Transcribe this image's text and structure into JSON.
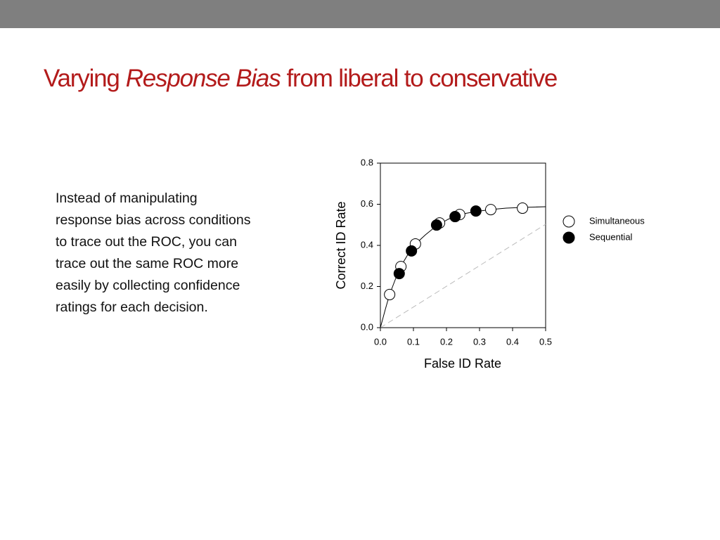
{
  "header": {
    "title_parts": [
      "Varying",
      "Response Bias",
      "from liberal to conservative"
    ]
  },
  "body": {
    "lines": [
      "Instead of manipulating",
      "response bias across conditions",
      "to trace out the ROC, you can",
      "trace out the same ROC more",
      "easily by collecting confidence",
      "ratings for each decision."
    ]
  },
  "chart_data": {
    "type": "scatter",
    "x_label": "False ID Rate",
    "y_label": "Correct ID Rate",
    "xlim": [
      0,
      0.5
    ],
    "ylim": [
      0,
      0.8
    ],
    "xticks": [
      {
        "value": 0,
        "label": "0.0"
      },
      0.1,
      0.2,
      0.3,
      0.4,
      0.5
    ],
    "yticks": [
      {
        "value": 0,
        "label": "0.0"
      },
      0.2,
      0.4,
      0.6,
      0.8
    ],
    "legend": "right",
    "series": [
      {
        "name": "Simultaneous",
        "color": "#ffffff",
        "x": [
          0.028,
          0.062,
          0.106,
          0.179,
          0.24,
          0.334,
          0.43
        ],
        "values": [
          0.161,
          0.297,
          0.407,
          0.509,
          0.55,
          0.574,
          0.581
        ]
      },
      {
        "name": "Sequential",
        "color": "#000000",
        "x": [
          0.057,
          0.094,
          0.17,
          0.226,
          0.289
        ],
        "values": [
          0.263,
          0.373,
          0.499,
          0.54,
          0.567
        ]
      }
    ]
  }
}
